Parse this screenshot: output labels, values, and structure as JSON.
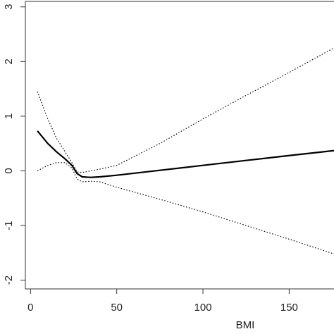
{
  "chart_data": {
    "type": "line",
    "x_label": "BMI",
    "x": [
      4,
      10,
      15,
      20,
      24,
      27,
      30,
      35,
      40,
      50,
      75,
      100,
      125,
      150,
      176
    ],
    "series": [
      {
        "color": "#000000",
        "style": "solid",
        "values": [
          0.73,
          0.5,
          0.35,
          0.22,
          0.1,
          -0.05,
          -0.11,
          -0.12,
          -0.11,
          -0.08,
          0.01,
          0.1,
          0.19,
          0.28,
          0.37
        ]
      },
      {
        "color": "#000000",
        "style": "dotted",
        "values": [
          1.45,
          0.95,
          0.6,
          0.35,
          0.15,
          -0.02,
          -0.03,
          0.0,
          0.03,
          0.1,
          0.5,
          0.95,
          1.38,
          1.8,
          2.25
        ]
      },
      {
        "color": "#000000",
        "style": "dotted",
        "values": [
          0.0,
          0.1,
          0.15,
          0.15,
          0.05,
          -0.15,
          -0.2,
          -0.19,
          -0.2,
          -0.3,
          -0.52,
          -0.75,
          -1.0,
          -1.25,
          -1.52
        ]
      }
    ],
    "xlim": [
      -3,
      176
    ],
    "xticks": [
      0,
      50,
      100,
      150
    ],
    "ylim": [
      -2.16,
      3.1
    ],
    "yticks": [
      -2,
      -1,
      0,
      1,
      2,
      3
    ]
  }
}
